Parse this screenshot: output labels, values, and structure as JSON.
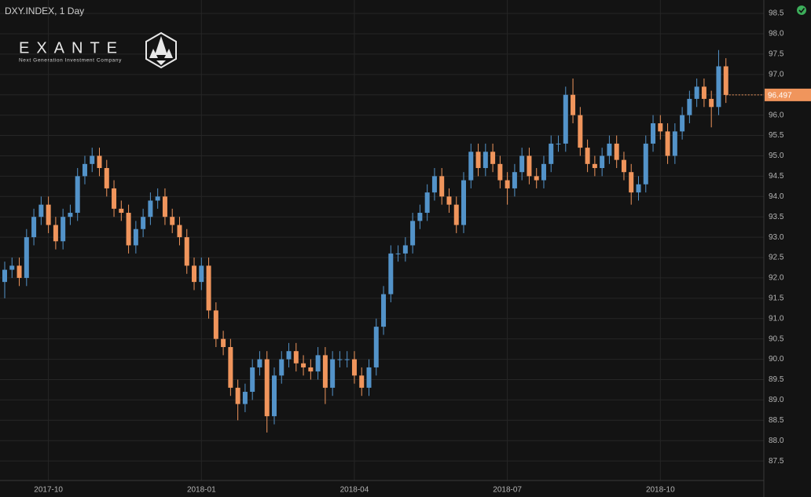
{
  "logo": {
    "name": "EXANTE",
    "tagline": "Next Generation Investment Company"
  },
  "chart_data": {
    "type": "candlestick",
    "title": "DXY.INDEX, 1 Day",
    "categories": [
      null,
      null,
      null,
      null,
      null,
      null,
      "2017-10",
      null,
      null,
      null,
      null,
      null,
      null,
      null,
      null,
      null,
      null,
      null,
      null,
      null,
      null,
      null,
      null,
      null,
      null,
      null,
      null,
      "2018-01",
      null,
      null,
      null,
      null,
      null,
      null,
      null,
      null,
      null,
      null,
      null,
      null,
      null,
      null,
      null,
      null,
      null,
      null,
      null,
      null,
      "2018-04",
      null,
      null,
      null,
      null,
      null,
      null,
      null,
      null,
      null,
      null,
      null,
      null,
      null,
      null,
      null,
      null,
      null,
      null,
      null,
      null,
      "2018-07",
      null,
      null,
      null,
      null,
      null,
      null,
      null,
      null,
      null,
      null,
      null,
      null,
      null,
      null,
      null,
      null,
      null,
      null,
      null,
      null,
      "2018-10",
      null,
      null,
      null,
      null,
      null,
      null,
      null,
      null,
      null
    ],
    "open": [
      91.9,
      92.2,
      92.3,
      92.0,
      93.0,
      93.5,
      93.8,
      93.3,
      92.9,
      93.5,
      93.6,
      94.5,
      94.8,
      95.0,
      94.7,
      94.2,
      93.7,
      93.6,
      92.8,
      93.2,
      93.5,
      93.9,
      94.0,
      93.5,
      93.3,
      93.0,
      92.3,
      91.9,
      92.3,
      91.2,
      90.5,
      90.3,
      89.3,
      88.9,
      89.2,
      89.8,
      90.0,
      88.6,
      89.6,
      90.0,
      90.2,
      89.9,
      89.8,
      89.7,
      90.1,
      89.3,
      90.0,
      90.0,
      90.0,
      89.6,
      89.3,
      89.8,
      90.8,
      91.6,
      92.6,
      92.6,
      92.8,
      93.4,
      93.6,
      94.1,
      94.5,
      94.0,
      93.8,
      93.3,
      94.4,
      95.1,
      94.7,
      95.1,
      94.8,
      94.4,
      94.2,
      94.6,
      95.0,
      94.5,
      94.4,
      94.8,
      95.3,
      95.3,
      96.5,
      96.0,
      95.2,
      94.8,
      94.7,
      95.0,
      95.3,
      94.9,
      94.6,
      94.1,
      94.3,
      95.3,
      95.8,
      95.6,
      95.0,
      95.6,
      96.0,
      96.4,
      96.7,
      96.4,
      96.2,
      97.2
    ],
    "high": [
      92.4,
      92.5,
      92.5,
      93.2,
      93.7,
      94.0,
      94.0,
      93.5,
      93.7,
      93.8,
      94.7,
      95.0,
      95.2,
      95.2,
      94.9,
      94.4,
      93.9,
      93.8,
      93.4,
      93.7,
      94.1,
      94.2,
      94.2,
      93.7,
      93.5,
      93.2,
      92.5,
      92.5,
      92.5,
      91.4,
      90.7,
      90.5,
      89.5,
      89.4,
      90.0,
      90.2,
      90.2,
      89.8,
      90.2,
      90.4,
      90.4,
      90.1,
      90.0,
      90.3,
      90.3,
      90.2,
      90.2,
      90.2,
      90.2,
      89.8,
      90.0,
      91.0,
      91.8,
      92.8,
      92.8,
      93.0,
      93.6,
      93.8,
      94.3,
      94.7,
      94.7,
      94.2,
      94.0,
      94.6,
      95.3,
      95.3,
      95.3,
      95.3,
      95.0,
      94.6,
      94.8,
      95.2,
      95.2,
      94.7,
      95.0,
      95.5,
      95.5,
      96.7,
      96.9,
      96.2,
      95.4,
      95.0,
      95.2,
      95.5,
      95.5,
      95.1,
      94.8,
      94.5,
      95.5,
      96.0,
      96.0,
      95.8,
      95.8,
      96.2,
      96.6,
      96.9,
      96.9,
      96.6,
      97.6,
      97.4
    ],
    "low": [
      91.5,
      92.0,
      91.8,
      91.8,
      92.8,
      93.3,
      93.1,
      92.7,
      92.7,
      93.3,
      93.4,
      94.3,
      94.6,
      94.5,
      94.0,
      93.5,
      93.4,
      92.6,
      92.6,
      93.0,
      93.3,
      93.7,
      93.3,
      93.1,
      92.8,
      92.1,
      91.7,
      91.7,
      91.0,
      90.3,
      90.1,
      89.1,
      88.5,
      88.7,
      89.0,
      89.6,
      88.2,
      88.4,
      89.4,
      89.8,
      89.7,
      89.6,
      89.5,
      89.5,
      88.9,
      89.1,
      89.8,
      89.8,
      89.4,
      89.1,
      89.1,
      89.6,
      90.6,
      91.4,
      92.4,
      92.4,
      92.6,
      93.2,
      93.4,
      93.9,
      93.8,
      93.6,
      93.1,
      93.1,
      94.2,
      94.5,
      94.5,
      94.6,
      94.2,
      93.8,
      94.0,
      94.4,
      94.3,
      94.2,
      94.2,
      94.6,
      95.1,
      95.1,
      95.8,
      95.0,
      94.6,
      94.5,
      94.5,
      94.8,
      94.7,
      94.4,
      93.8,
      93.9,
      94.1,
      95.1,
      95.4,
      94.8,
      94.8,
      95.4,
      95.8,
      96.2,
      96.2,
      95.7,
      96.0,
      96.3
    ],
    "close": [
      92.2,
      92.3,
      92.0,
      93.0,
      93.5,
      93.8,
      93.3,
      92.9,
      93.5,
      93.6,
      94.5,
      94.8,
      95.0,
      94.7,
      94.2,
      93.7,
      93.6,
      92.8,
      93.2,
      93.5,
      93.9,
      94.0,
      93.5,
      93.3,
      93.0,
      92.3,
      91.9,
      92.3,
      91.2,
      90.5,
      90.3,
      89.3,
      88.9,
      89.2,
      89.8,
      90.0,
      88.6,
      89.6,
      90.0,
      90.2,
      89.9,
      89.8,
      89.7,
      90.1,
      89.3,
      90.0,
      90.0,
      90.0,
      89.6,
      89.3,
      89.8,
      90.8,
      91.6,
      92.6,
      92.6,
      92.8,
      93.4,
      93.6,
      94.1,
      94.5,
      94.0,
      93.8,
      93.3,
      94.4,
      95.1,
      94.7,
      95.1,
      94.8,
      94.4,
      94.2,
      94.6,
      95.0,
      94.5,
      94.4,
      94.8,
      95.3,
      95.3,
      96.5,
      96.0,
      95.2,
      94.8,
      94.7,
      95.0,
      95.3,
      94.9,
      94.6,
      94.1,
      94.3,
      95.3,
      95.8,
      95.6,
      95.0,
      95.6,
      96.0,
      96.4,
      96.7,
      96.4,
      96.2,
      97.2,
      96.497
    ],
    "up_color": "#5393c9",
    "down_color": "#f0955c",
    "ylim": [
      87.02,
      98.83
    ],
    "yticks": [
      87.5,
      {
        "value": 88,
        "label": "88.0"
      },
      88.5,
      {
        "value": 89,
        "label": "89.0"
      },
      89.5,
      {
        "value": 90,
        "label": "90.0"
      },
      90.5,
      {
        "value": 91,
        "label": "91.0"
      },
      91.5,
      {
        "value": 92,
        "label": "92.0"
      },
      92.5,
      {
        "value": 93,
        "label": "93.0"
      },
      93.5,
      {
        "value": 94,
        "label": "94.0"
      },
      94.5,
      {
        "value": 95,
        "label": "95.0"
      },
      95.5,
      {
        "value": 96,
        "label": "96.0"
      },
      96.5,
      {
        "value": 97,
        "label": "97.0"
      },
      97.5,
      {
        "value": 98,
        "label": "98.0"
      },
      98.5
    ],
    "grid": true,
    "last_price": 96.497
  }
}
